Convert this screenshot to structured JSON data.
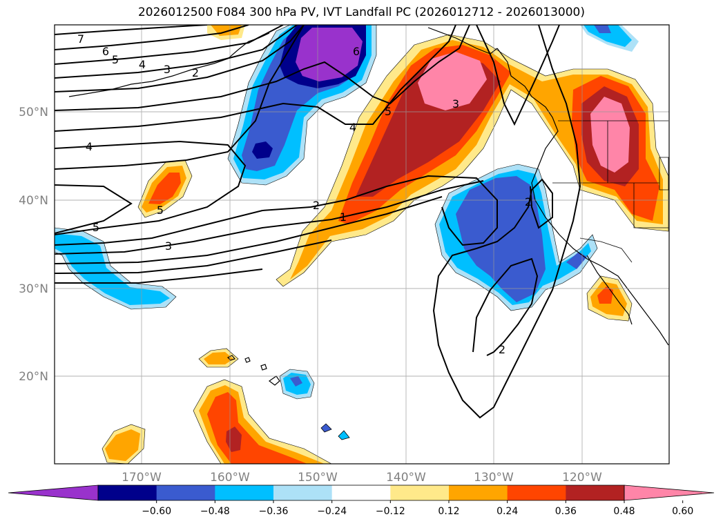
{
  "title": "2026012500 F084 300 hPa PV, IVT Landfall PC (2026012712 - 2026013000)",
  "lat_labels": [
    "50°N",
    "40°N",
    "30°N",
    "20°N"
  ],
  "lon_labels": [
    "170°W",
    "160°W",
    "150°W",
    "140°W",
    "130°W",
    "120°W"
  ],
  "colorbar": {
    "colors": [
      "#9932cc",
      "#00008b",
      "#3a5bcf",
      "#00bfff",
      "#ade1f7",
      "#ffffff",
      "#ffe98a",
      "#ffa500",
      "#ff4500",
      "#b22222",
      "#ff85a8"
    ],
    "tick_labels": [
      "−0.60",
      "−0.48",
      "−0.36",
      "−0.24",
      "−0.12",
      "0.12",
      "0.24",
      "0.36",
      "0.48",
      "0.60"
    ]
  },
  "contour_labels": [
    "7",
    "6",
    "5",
    "4",
    "3",
    "2",
    "4",
    "5",
    "3",
    "5",
    "2",
    "1",
    "6",
    "5",
    "4",
    "3",
    "2",
    "2"
  ]
}
